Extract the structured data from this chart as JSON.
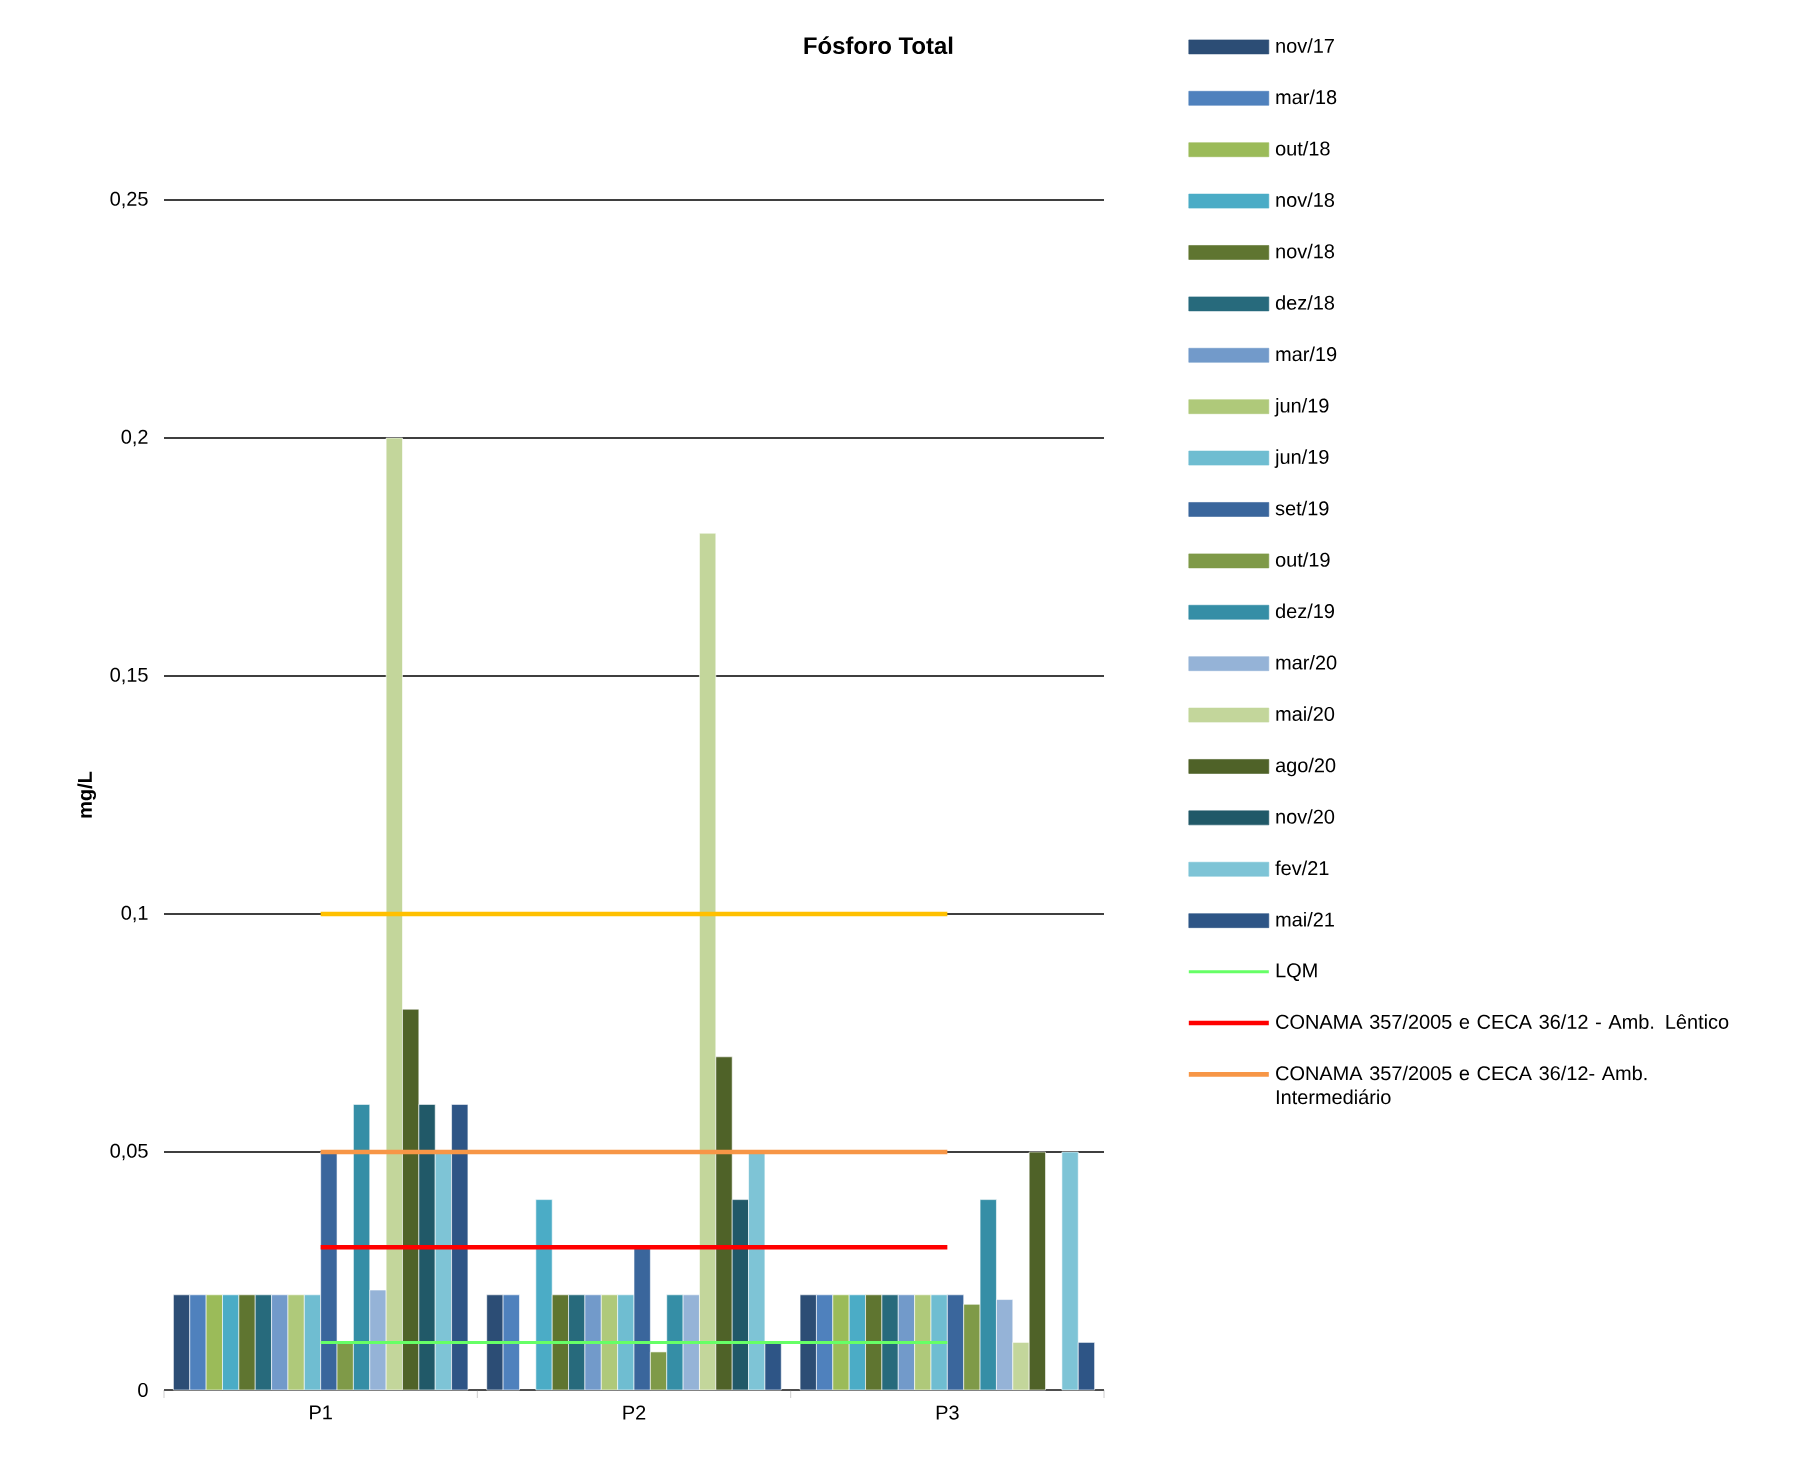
{
  "chart_data": {
    "type": "bar",
    "title": "Fósforo Total",
    "ylabel": "mg/L",
    "categories": [
      "P1",
      "P2",
      "P3"
    ],
    "ylim": [
      0,
      0.25
    ],
    "yticks": [
      0,
      {
        "value": 0.05,
        "label": "0,05"
      },
      {
        "value": 0.1,
        "label": "0,1"
      },
      {
        "value": 0.15,
        "label": "0,15"
      },
      {
        "value": 0.2,
        "label": "0,2"
      },
      {
        "value": 0.25,
        "label": "0,25"
      }
    ],
    "grid": "y",
    "legend": "right",
    "series": [
      {
        "name": "nov/17",
        "color": "#2c4d75",
        "values": [
          0.02,
          0.02,
          0.02
        ]
      },
      {
        "name": "mar/18",
        "color": "#4f81bd",
        "values": [
          0.02,
          0.02,
          0.02
        ]
      },
      {
        "name": "out/18",
        "color": "#9bbb59",
        "values": [
          0.02,
          null,
          0.02
        ]
      },
      {
        "name": "nov/18",
        "color": "#4bacc6",
        "values": [
          0.02,
          0.04,
          0.02
        ]
      },
      {
        "name": "nov/18",
        "color": "#5f7530",
        "values": [
          0.02,
          0.02,
          0.02
        ]
      },
      {
        "name": "dez/18",
        "color": "#276a7c",
        "values": [
          0.02,
          0.02,
          0.02
        ]
      },
      {
        "name": "mar/19",
        "color": "#729aca",
        "values": [
          0.02,
          0.02,
          0.02
        ]
      },
      {
        "name": "jun/19",
        "color": "#afc97a",
        "values": [
          0.02,
          0.02,
          0.02
        ]
      },
      {
        "name": "jun/19",
        "color": "#6fbdd1",
        "values": [
          0.02,
          0.02,
          0.02
        ]
      },
      {
        "name": "set/19",
        "color": "#3a669c",
        "values": [
          0.05,
          0.03,
          0.02
        ]
      },
      {
        "name": "out/19",
        "color": "#7f9a48",
        "values": [
          0.01,
          0.008,
          0.018
        ]
      },
      {
        "name": "dez/19",
        "color": "#358ea6",
        "values": [
          0.06,
          0.02,
          0.04
        ]
      },
      {
        "name": "mar/20",
        "color": "#95b3d7",
        "values": [
          0.021,
          0.02,
          0.019
        ]
      },
      {
        "name": "mai/20",
        "color": "#c3d69b",
        "values": [
          0.2,
          0.18,
          0.01
        ]
      },
      {
        "name": "ago/20",
        "color": "#4f6228",
        "values": [
          0.08,
          0.07,
          0.05
        ]
      },
      {
        "name": "nov/20",
        "color": "#215968",
        "values": [
          0.06,
          0.04,
          null
        ]
      },
      {
        "name": "fev/21",
        "color": "#7ec4d6",
        "values": [
          0.05,
          0.05,
          0.05
        ]
      },
      {
        "name": "mai/21",
        "color": "#2e5586",
        "values": [
          0.06,
          0.01,
          0.01
        ]
      },
      {
        "type": "line",
        "name": "LQM",
        "color": "#66ff66",
        "values": [
          0.01,
          0.01,
          0.01
        ]
      },
      {
        "type": "line",
        "name": "CONAMA 357/2005 e CECA 36/12 - Amb. Lêntico",
        "color": "#ff0000",
        "values": [
          0.03,
          0.03,
          0.03
        ]
      },
      {
        "type": "line",
        "name": "CONAMA 357/2005 e CECA 36/12- Amb. Intermediário",
        "color": "#f79646",
        "values": [
          0.05,
          0.05,
          0.05
        ]
      },
      {
        "type": "line",
        "color": "#ffc000",
        "values": [
          0.1,
          0.1,
          0.1
        ]
      }
    ]
  }
}
